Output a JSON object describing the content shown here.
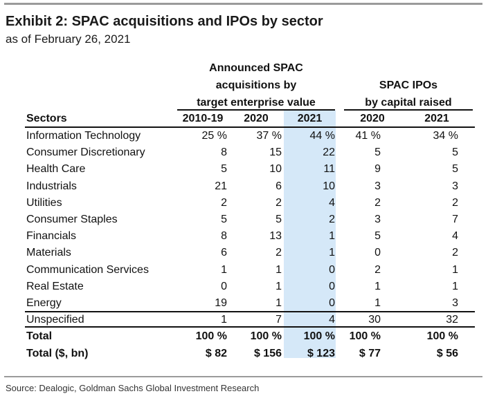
{
  "exhibit": {
    "title": "Exhibit 2: SPAC acquisitions and IPOs by sector",
    "subtitle": "as of February 26, 2021"
  },
  "table": {
    "group1_header": [
      "Announced SPAC",
      "acquisitions by",
      "target enterprise value"
    ],
    "group2_header": [
      "SPAC IPOs",
      "by capital raised"
    ],
    "sector_header": "Sectors",
    "columns": [
      "2010-19",
      "2020",
      "2021",
      "2020",
      "2021"
    ],
    "highlight_color": "#d5e8f8",
    "rows": [
      {
        "sector": "Information Technology",
        "values": [
          "25 %",
          "37 %",
          "44 %",
          "41 %",
          "34 %"
        ]
      },
      {
        "sector": "Consumer Discretionary",
        "values": [
          "8",
          "15",
          "22",
          "5",
          "5"
        ]
      },
      {
        "sector": "Health Care",
        "values": [
          "5",
          "10",
          "11",
          "9",
          "5"
        ]
      },
      {
        "sector": "Industrials",
        "values": [
          "21",
          "6",
          "10",
          "3",
          "3"
        ]
      },
      {
        "sector": "Utilities",
        "values": [
          "2",
          "2",
          "4",
          "2",
          "2"
        ]
      },
      {
        "sector": "Consumer Staples",
        "values": [
          "5",
          "5",
          "2",
          "3",
          "7"
        ]
      },
      {
        "sector": "Financials",
        "values": [
          "8",
          "13",
          "1",
          "5",
          "4"
        ]
      },
      {
        "sector": "Materials",
        "values": [
          "6",
          "2",
          "1",
          "0",
          "2"
        ]
      },
      {
        "sector": "Communication Services",
        "values": [
          "1",
          "1",
          "0",
          "2",
          "1"
        ]
      },
      {
        "sector": "Real Estate",
        "values": [
          "0",
          "1",
          "0",
          "1",
          "1"
        ]
      },
      {
        "sector": "Energy",
        "values": [
          "19",
          "1",
          "0",
          "1",
          "3"
        ]
      },
      {
        "sector": "Unspecified",
        "values": [
          "1",
          "7",
          "4",
          "30",
          "32"
        ]
      }
    ],
    "totals": [
      {
        "label": "Total",
        "values": [
          "100 %",
          "100 %",
          "100 %",
          "100 %",
          "100 %"
        ]
      },
      {
        "label": "Total ($, bn)",
        "values": [
          "$ 82",
          "$ 156",
          "$ 123",
          "$ 77",
          "$ 56"
        ]
      }
    ]
  },
  "source": "Source: Dealogic, Goldman Sachs Global Investment Research"
}
